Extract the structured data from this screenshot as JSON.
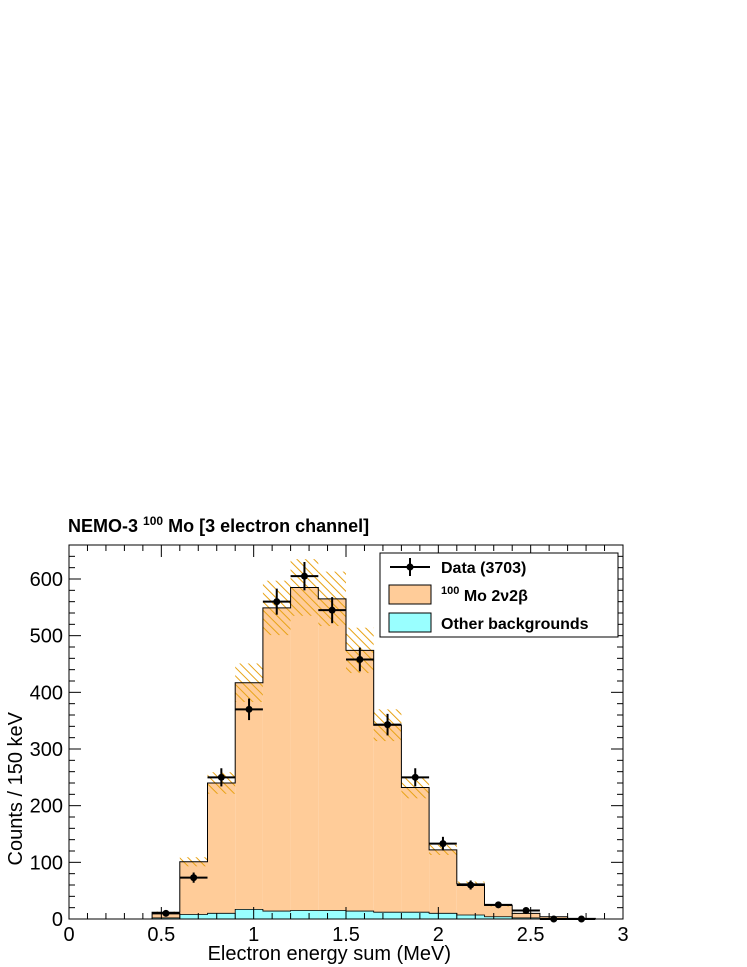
{
  "chart_data": {
    "type": "bar",
    "title": "NEMO-3",
    "title_isotope_mass": "100",
    "title_isotope": "Mo",
    "title_suffix": "[3 electron channel]",
    "xlabel": "Electron energy sum (MeV)",
    "ylabel": "Counts / 150 keV",
    "xlim": [
      0,
      3
    ],
    "ylim": [
      0,
      660
    ],
    "x_ticks": [
      "0",
      "0.5",
      "1",
      "1.5",
      "2",
      "2.5",
      "3"
    ],
    "y_ticks": [
      "0",
      "100",
      "200",
      "300",
      "400",
      "500",
      "600"
    ],
    "bin_edges": [
      0.45,
      0.6,
      0.75,
      0.9,
      1.05,
      1.2,
      1.35,
      1.5,
      1.65,
      1.8,
      1.95,
      2.1,
      2.25,
      2.4,
      2.55,
      2.7,
      2.85
    ],
    "legend_position": "top-right",
    "series": [
      {
        "name": "Data (3703)",
        "kind": "points",
        "color": "#000000",
        "x": [
          0.525,
          0.675,
          0.825,
          0.975,
          1.125,
          1.275,
          1.425,
          1.575,
          1.725,
          1.875,
          2.025,
          2.175,
          2.325,
          2.475,
          2.625,
          2.775
        ],
        "values": [
          10,
          73,
          250,
          370,
          560,
          605,
          545,
          458,
          343,
          250,
          133,
          60,
          25,
          15,
          0,
          0
        ],
        "errors": [
          3,
          9,
          16,
          19,
          23,
          25,
          23,
          21,
          19,
          16,
          12,
          8,
          5,
          4,
          0,
          0
        ]
      },
      {
        "name_isotope_mass": "100",
        "name_isotope": "Mo",
        "name": "2ν2β",
        "kind": "stacked-histogram",
        "color": "#ffcc99",
        "values": [
          10,
          93,
          230,
          400,
          535,
          570,
          550,
          460,
          330,
          220,
          112,
          55,
          20,
          8,
          3,
          1
        ],
        "uncertainty_band": [
          1,
          8,
          19,
          34,
          48,
          50,
          48,
          40,
          28,
          19,
          9,
          4,
          2,
          1,
          0,
          0
        ],
        "band_color": "#e8a317"
      },
      {
        "name": "Other backgrounds",
        "kind": "stacked-histogram",
        "color": "#99ffff",
        "values": [
          2,
          8,
          10,
          17,
          14,
          15,
          15,
          14,
          12,
          12,
          10,
          7,
          4,
          2,
          1,
          0
        ]
      }
    ]
  }
}
